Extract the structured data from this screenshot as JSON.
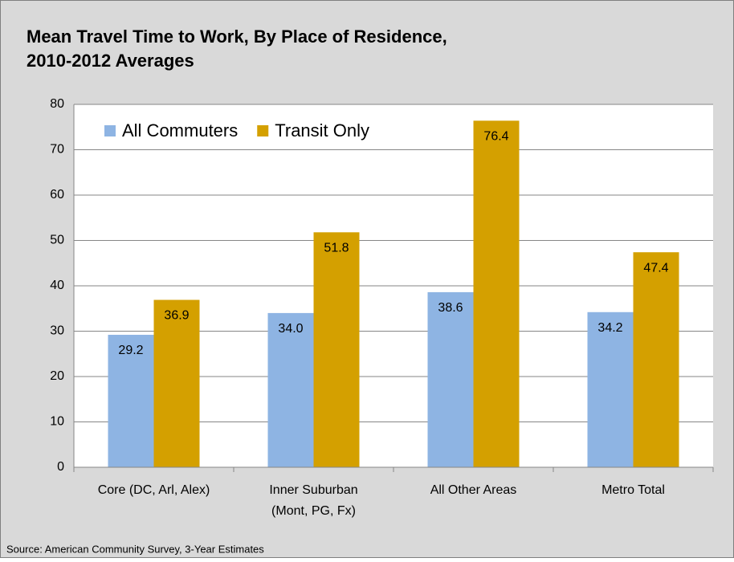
{
  "chart_data": {
    "type": "bar",
    "title": "Mean Travel Time to Work, By Place of Residence, 2010-2012 Averages",
    "source": "Source: American Community Survey, 3-Year Estimates",
    "categories": [
      "Core (DC, Arl, Alex)",
      "Inner Suburban (Mont, PG, Fx)",
      "All Other Areas",
      "Metro Total"
    ],
    "series": [
      {
        "name": "All Commuters",
        "color": "#8eb4e3",
        "values": [
          29.2,
          34.0,
          38.6,
          34.2
        ],
        "value_labels": [
          "29.2",
          "34.0",
          "38.6",
          "34.2"
        ]
      },
      {
        "name": "Transit Only",
        "color": "#d4a000",
        "values": [
          36.9,
          51.8,
          76.4,
          47.4
        ],
        "value_labels": [
          "36.9",
          "51.8",
          "76.4",
          "47.4"
        ]
      }
    ],
    "ylim": [
      0,
      80
    ],
    "yticks": [
      0,
      10,
      20,
      30,
      40,
      50,
      60,
      70,
      80
    ],
    "grid": true,
    "legend": "top-left"
  }
}
